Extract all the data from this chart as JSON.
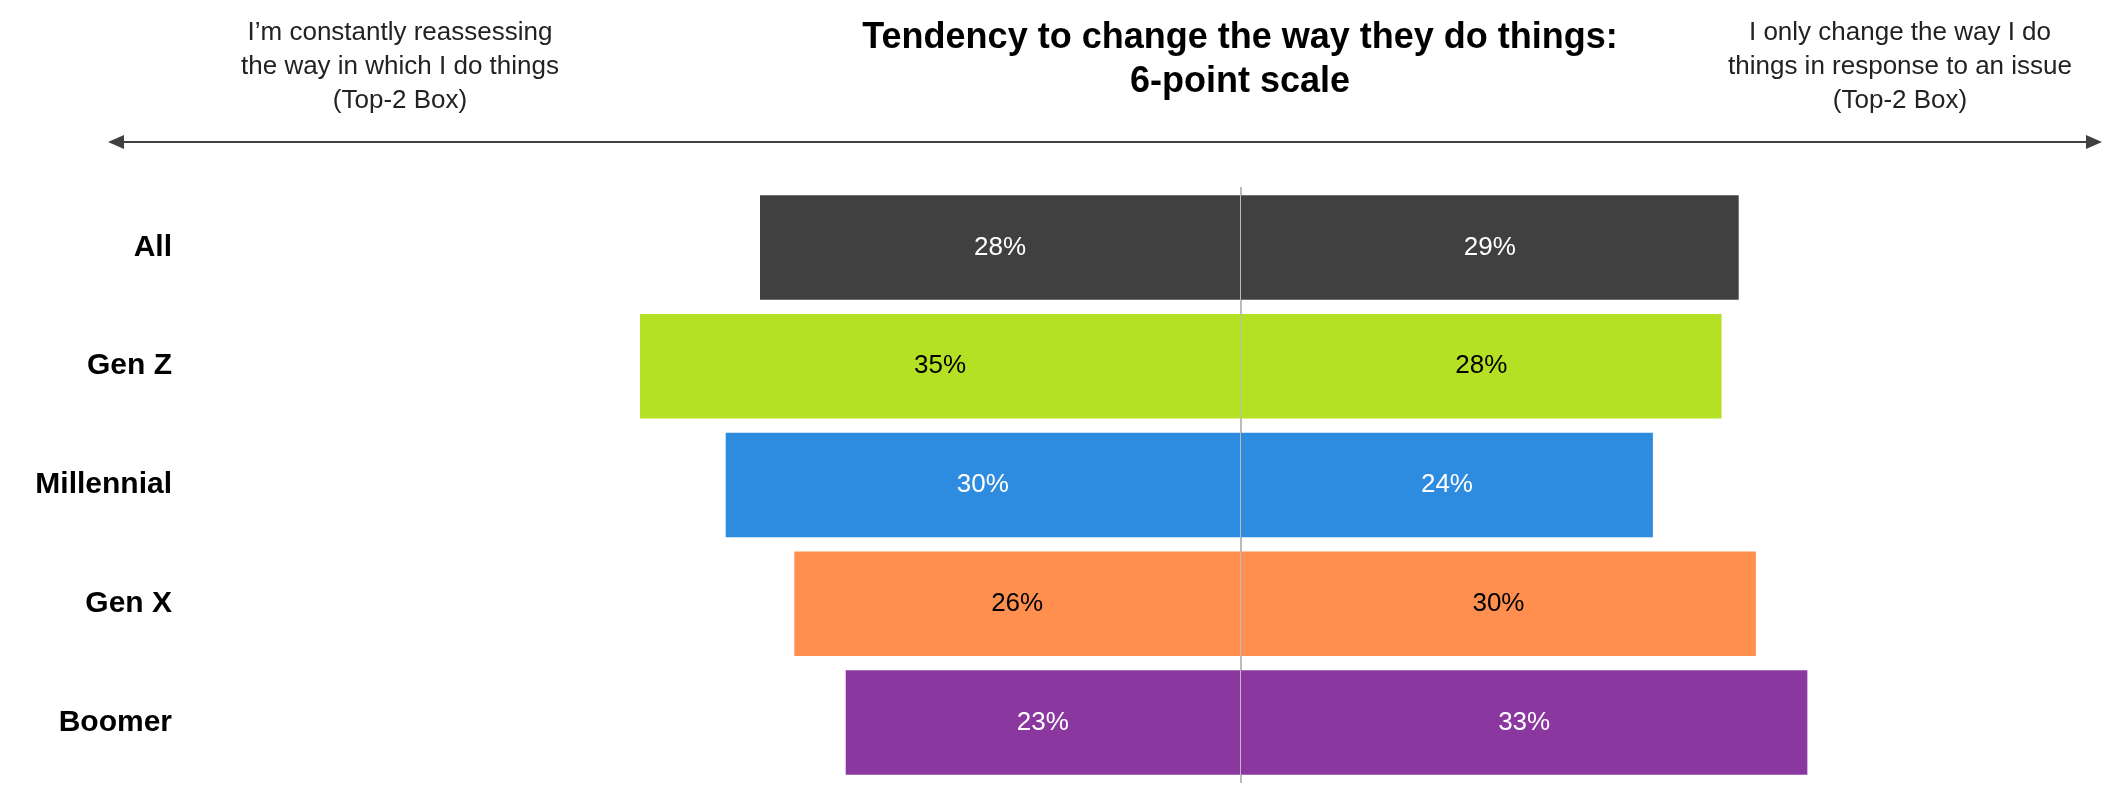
{
  "chart_data": [
    {
      "type": "bar",
      "orientation": "horizontal",
      "title": "Tendency to change the way they do things:\n6-point scale",
      "annotations": [
        "I’m constantly reassessing\nthe way in which I do things\n(Top-2 Box)"
      ],
      "categories": [
        "All",
        "Gen Z",
        "Millennial",
        "Gen X",
        "Boomer"
      ],
      "colors": [
        "#404040",
        "#b5e125",
        "#2e8ce0",
        "#ff8f4f",
        "#8b37a0"
      ],
      "values": [
        28,
        35,
        30,
        26,
        23
      ],
      "value_labels": [
        "28%",
        "35%",
        "30%",
        "26%",
        "23%"
      ]
    },
    {
      "type": "bar",
      "orientation": "horizontal",
      "annotations": [
        "I only change the way I do\nthings in response to an issue\n(Top-2 Box)"
      ],
      "categories": [
        null,
        null,
        null,
        null,
        null
      ],
      "colors": [
        "#404040",
        "#b5e125",
        "#2e8ce0",
        "#ff8f4f",
        "#8b37a0"
      ],
      "values": [
        29,
        28,
        24,
        30,
        33
      ],
      "value_labels": [
        "29%",
        "28%",
        "24%",
        "30%",
        "33%"
      ]
    }
  ]
}
